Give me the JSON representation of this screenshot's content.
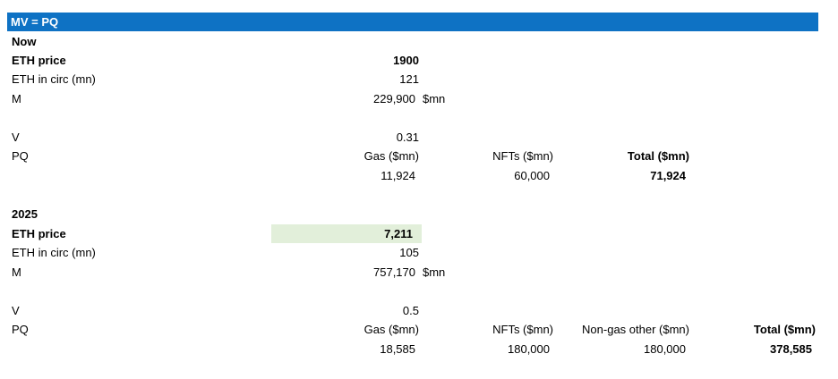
{
  "colors": {
    "banner": "#0e72c4",
    "highlight": "#e2efda"
  },
  "title": "MV = PQ",
  "now": {
    "heading": "Now",
    "eth_price_label": "ETH price",
    "eth_price": "1900",
    "eth_circ_label": "ETH in circ (mn)",
    "eth_circ": "121",
    "m_label": "M",
    "m_value": "229,900",
    "m_unit": "$mn",
    "v_label": "V",
    "v_value": "0.31",
    "pq_label": "PQ",
    "gas_header": "Gas ($mn)",
    "nfts_header": "NFTs ($mn)",
    "total_header": "Total ($mn)",
    "gas_value": "11,924",
    "nfts_value": "60,000",
    "total_value": "71,924"
  },
  "y2025": {
    "heading": "2025",
    "eth_price_label": "ETH price",
    "eth_price": "7,211",
    "eth_circ_label": "ETH in circ (mn)",
    "eth_circ": "105",
    "m_label": "M",
    "m_value": "757,170",
    "m_unit": "$mn",
    "v_label": "V",
    "v_value": "0.5",
    "pq_label": "PQ",
    "gas_header": "Gas ($mn)",
    "nfts_header": "NFTs ($mn)",
    "nongas_header": "Non-gas other ($mn)",
    "total_header": "Total ($mn)",
    "gas_value": "18,585",
    "nfts_value": "180,000",
    "nongas_value": "180,000",
    "total_value": "378,585"
  }
}
